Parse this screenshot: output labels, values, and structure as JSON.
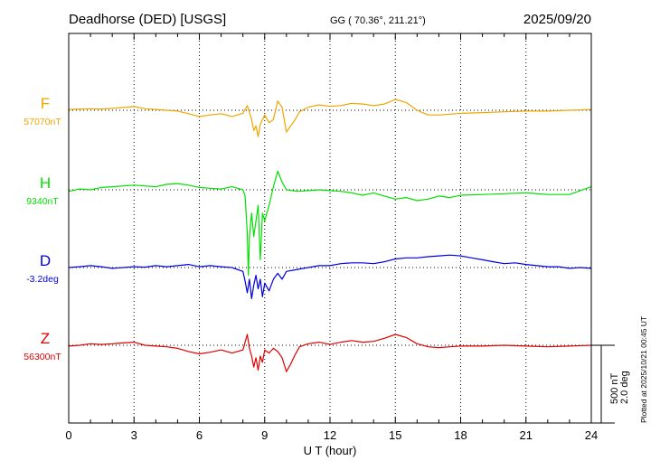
{
  "header": {
    "station": "Deadhorse (DED)  [USGS]",
    "coords": "GG ( 70.36°, 211.21°)",
    "date": "2025/09/20"
  },
  "side_note": "Plotted at 2025/10/21 00:45 UT",
  "scale_bar": {
    "line1": "500 nT",
    "line2": "2.0 deg"
  },
  "chart_data": {
    "type": "line",
    "title": "Deadhorse (DED)  [USGS]",
    "xlabel": "U T (hour)",
    "ylabel": "",
    "xlim": [
      0,
      24
    ],
    "x_ticks": [
      "0",
      "3",
      "6",
      "9",
      "12",
      "15",
      "18",
      "21",
      "24"
    ],
    "grid": true,
    "scale": "500 nT / 2.0 deg per bar",
    "series": [
      {
        "name": "F",
        "baseline": "57070nT",
        "color": "#f0a500",
        "unit": "nT",
        "x": [
          0,
          0.5,
          1,
          1.5,
          2,
          2.5,
          3,
          3.5,
          4,
          4.5,
          5,
          5.5,
          6,
          6.5,
          7,
          7.5,
          8,
          8.2,
          8.4,
          8.5,
          8.6,
          8.7,
          8.8,
          8.9,
          9,
          9.2,
          9.4,
          9.6,
          9.8,
          10,
          10.2,
          10.4,
          10.6,
          11,
          11.5,
          12,
          12.5,
          13,
          13.5,
          14,
          14.5,
          15,
          15.5,
          16,
          16.5,
          17,
          17.5,
          18,
          19,
          20,
          21,
          22,
          23,
          24
        ],
        "values": [
          5,
          8,
          10,
          8,
          12,
          18,
          24,
          10,
          5,
          0,
          -5,
          -22,
          -40,
          -30,
          -22,
          -40,
          -20,
          30,
          -60,
          -130,
          -100,
          -170,
          -90,
          -60,
          -30,
          -80,
          -60,
          60,
          20,
          -140,
          -100,
          -60,
          -10,
          20,
          35,
          25,
          30,
          45,
          40,
          30,
          40,
          70,
          50,
          0,
          -30,
          -30,
          -25,
          -20,
          -15,
          -10,
          -5,
          -5,
          0,
          5
        ]
      },
      {
        "name": "H",
        "baseline": "9340nT",
        "color": "#00e000",
        "unit": "nT",
        "x": [
          0,
          0.5,
          1,
          1.5,
          2,
          2.5,
          3,
          3.5,
          4,
          4.5,
          5,
          5.5,
          6,
          6.5,
          7,
          7.5,
          8,
          8.1,
          8.2,
          8.25,
          8.3,
          8.4,
          8.5,
          8.6,
          8.7,
          8.8,
          8.9,
          9,
          9.2,
          9.4,
          9.6,
          9.8,
          10,
          10.5,
          11,
          11.5,
          12,
          12.5,
          13,
          13.5,
          14,
          14.5,
          15,
          15.5,
          16,
          16.5,
          17,
          17.5,
          18,
          19,
          20,
          21,
          22,
          23,
          24
        ],
        "values": [
          -10,
          5,
          0,
          15,
          20,
          25,
          30,
          25,
          20,
          35,
          40,
          30,
          15,
          10,
          5,
          20,
          0,
          -40,
          -280,
          -550,
          -300,
          -150,
          -300,
          -200,
          -100,
          -450,
          -150,
          -200,
          -100,
          20,
          120,
          50,
          0,
          -10,
          -5,
          0,
          -5,
          -10,
          -20,
          -35,
          -20,
          -40,
          -60,
          -50,
          -70,
          -60,
          -40,
          -50,
          -35,
          -30,
          -25,
          -20,
          -30,
          -30,
          20
        ]
      },
      {
        "name": "D",
        "baseline": "-3.2deg",
        "color": "#0000e0",
        "unit": "deg",
        "x": [
          0,
          0.5,
          1,
          1.5,
          2,
          2.5,
          3,
          3.5,
          4,
          4.5,
          5,
          5.5,
          6,
          6.5,
          7,
          7.5,
          8,
          8.1,
          8.2,
          8.3,
          8.4,
          8.5,
          8.6,
          8.7,
          8.8,
          8.9,
          9,
          9.2,
          9.4,
          9.6,
          9.8,
          10,
          10.5,
          11,
          11.5,
          12,
          12.5,
          13,
          13.5,
          14,
          14.5,
          15,
          15.5,
          16,
          16.5,
          17,
          17.5,
          18,
          18.5,
          19,
          19.5,
          20,
          20.5,
          21,
          21.5,
          22,
          22.5,
          23,
          23.5,
          24
        ],
        "values": [
          0,
          0.02,
          0.05,
          0.02,
          -0.02,
          0,
          0.02,
          0.01,
          0.05,
          0.02,
          0.05,
          0.08,
          0.02,
          0.05,
          0.02,
          0,
          -0.1,
          -0.35,
          -0.65,
          -0.3,
          -0.8,
          -0.45,
          -0.2,
          -0.55,
          -0.3,
          -0.75,
          -0.4,
          -0.6,
          -0.3,
          -0.15,
          -0.3,
          -0.1,
          -0.05,
          0,
          0.05,
          0.05,
          0.1,
          0.12,
          0.12,
          0.1,
          0.15,
          0.22,
          0.25,
          0.25,
          0.28,
          0.3,
          0.32,
          0.3,
          0.25,
          0.2,
          0.15,
          0.1,
          0.12,
          0.08,
          0.05,
          0.02,
          0.02,
          -0.02,
          0,
          -0.02
        ]
      },
      {
        "name": "Z",
        "baseline": "56300nT",
        "color": "#e00000",
        "unit": "nT",
        "x": [
          0,
          0.5,
          1,
          1.5,
          2,
          2.5,
          3,
          3.5,
          4,
          4.5,
          5,
          5.5,
          6,
          6.5,
          7,
          7.5,
          8,
          8.2,
          8.3,
          8.4,
          8.5,
          8.6,
          8.7,
          8.8,
          8.9,
          9,
          9.2,
          9.4,
          9.6,
          9.8,
          10,
          10.2,
          10.4,
          10.6,
          11,
          11.5,
          12,
          12.5,
          13,
          13.5,
          14,
          14.5,
          15,
          15.5,
          16,
          16.5,
          17,
          17.5,
          18,
          19,
          20,
          21,
          22,
          23,
          24
        ],
        "values": [
          -5,
          0,
          10,
          5,
          10,
          15,
          20,
          0,
          -5,
          -10,
          -20,
          -40,
          -55,
          -45,
          -30,
          -50,
          -30,
          70,
          -20,
          -70,
          -140,
          -80,
          -160,
          -70,
          -110,
          -30,
          -50,
          -20,
          -40,
          -80,
          -170,
          -120,
          -60,
          -10,
          10,
          20,
          5,
          20,
          30,
          20,
          25,
          45,
          70,
          50,
          10,
          -10,
          -15,
          -10,
          -5,
          -5,
          0,
          -5,
          -10,
          -5,
          0
        ]
      }
    ]
  }
}
